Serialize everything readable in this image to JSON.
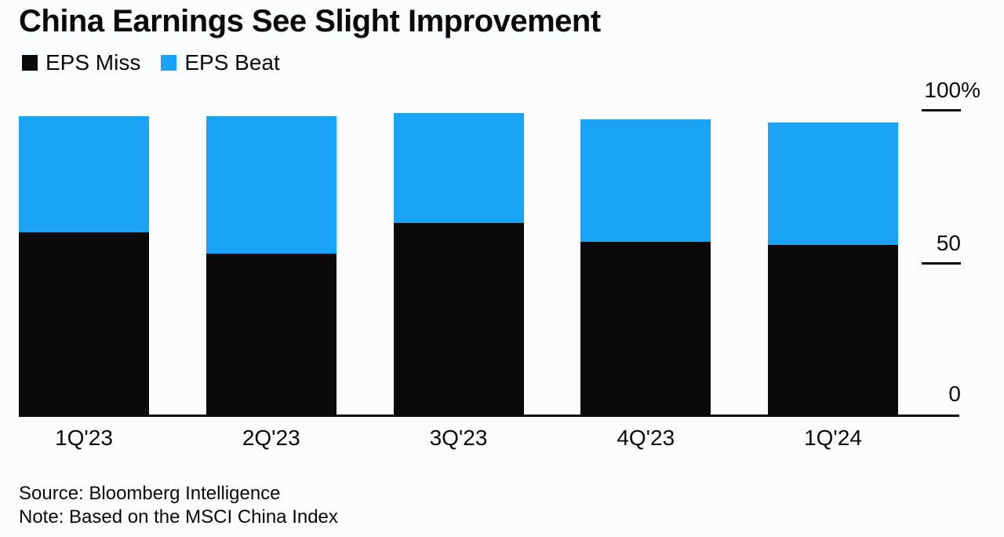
{
  "chart_data": {
    "type": "bar",
    "stacked": true,
    "title": "China Earnings See Slight Improvement",
    "categories": [
      "1Q'23",
      "2Q'23",
      "3Q'23",
      "4Q'23",
      "1Q'24"
    ],
    "series": [
      {
        "name": "EPS Miss",
        "color": "#0a0a0a",
        "values": [
          60,
          53,
          63,
          57,
          56
        ]
      },
      {
        "name": "EPS Beat",
        "color": "#1ba4f5",
        "values": [
          38,
          45,
          36,
          40,
          40
        ]
      }
    ],
    "unit": "%",
    "y_axis": {
      "min": 0,
      "max": 100,
      "position": "right",
      "ticks": [
        {
          "label": "100%",
          "value": 100
        },
        {
          "label": "50",
          "value": 50
        },
        {
          "label": "0",
          "value": 0
        }
      ]
    },
    "legend_position": "top-left",
    "grid": false
  },
  "footer": {
    "source": "Source: Bloomberg Intelligence",
    "note": "Note: Based on the MSCI China Index"
  },
  "colors": {
    "miss": "#0a0a0a",
    "beat": "#1ba4f5",
    "background": "#fbfcfe",
    "text": "#0a0a0a"
  }
}
